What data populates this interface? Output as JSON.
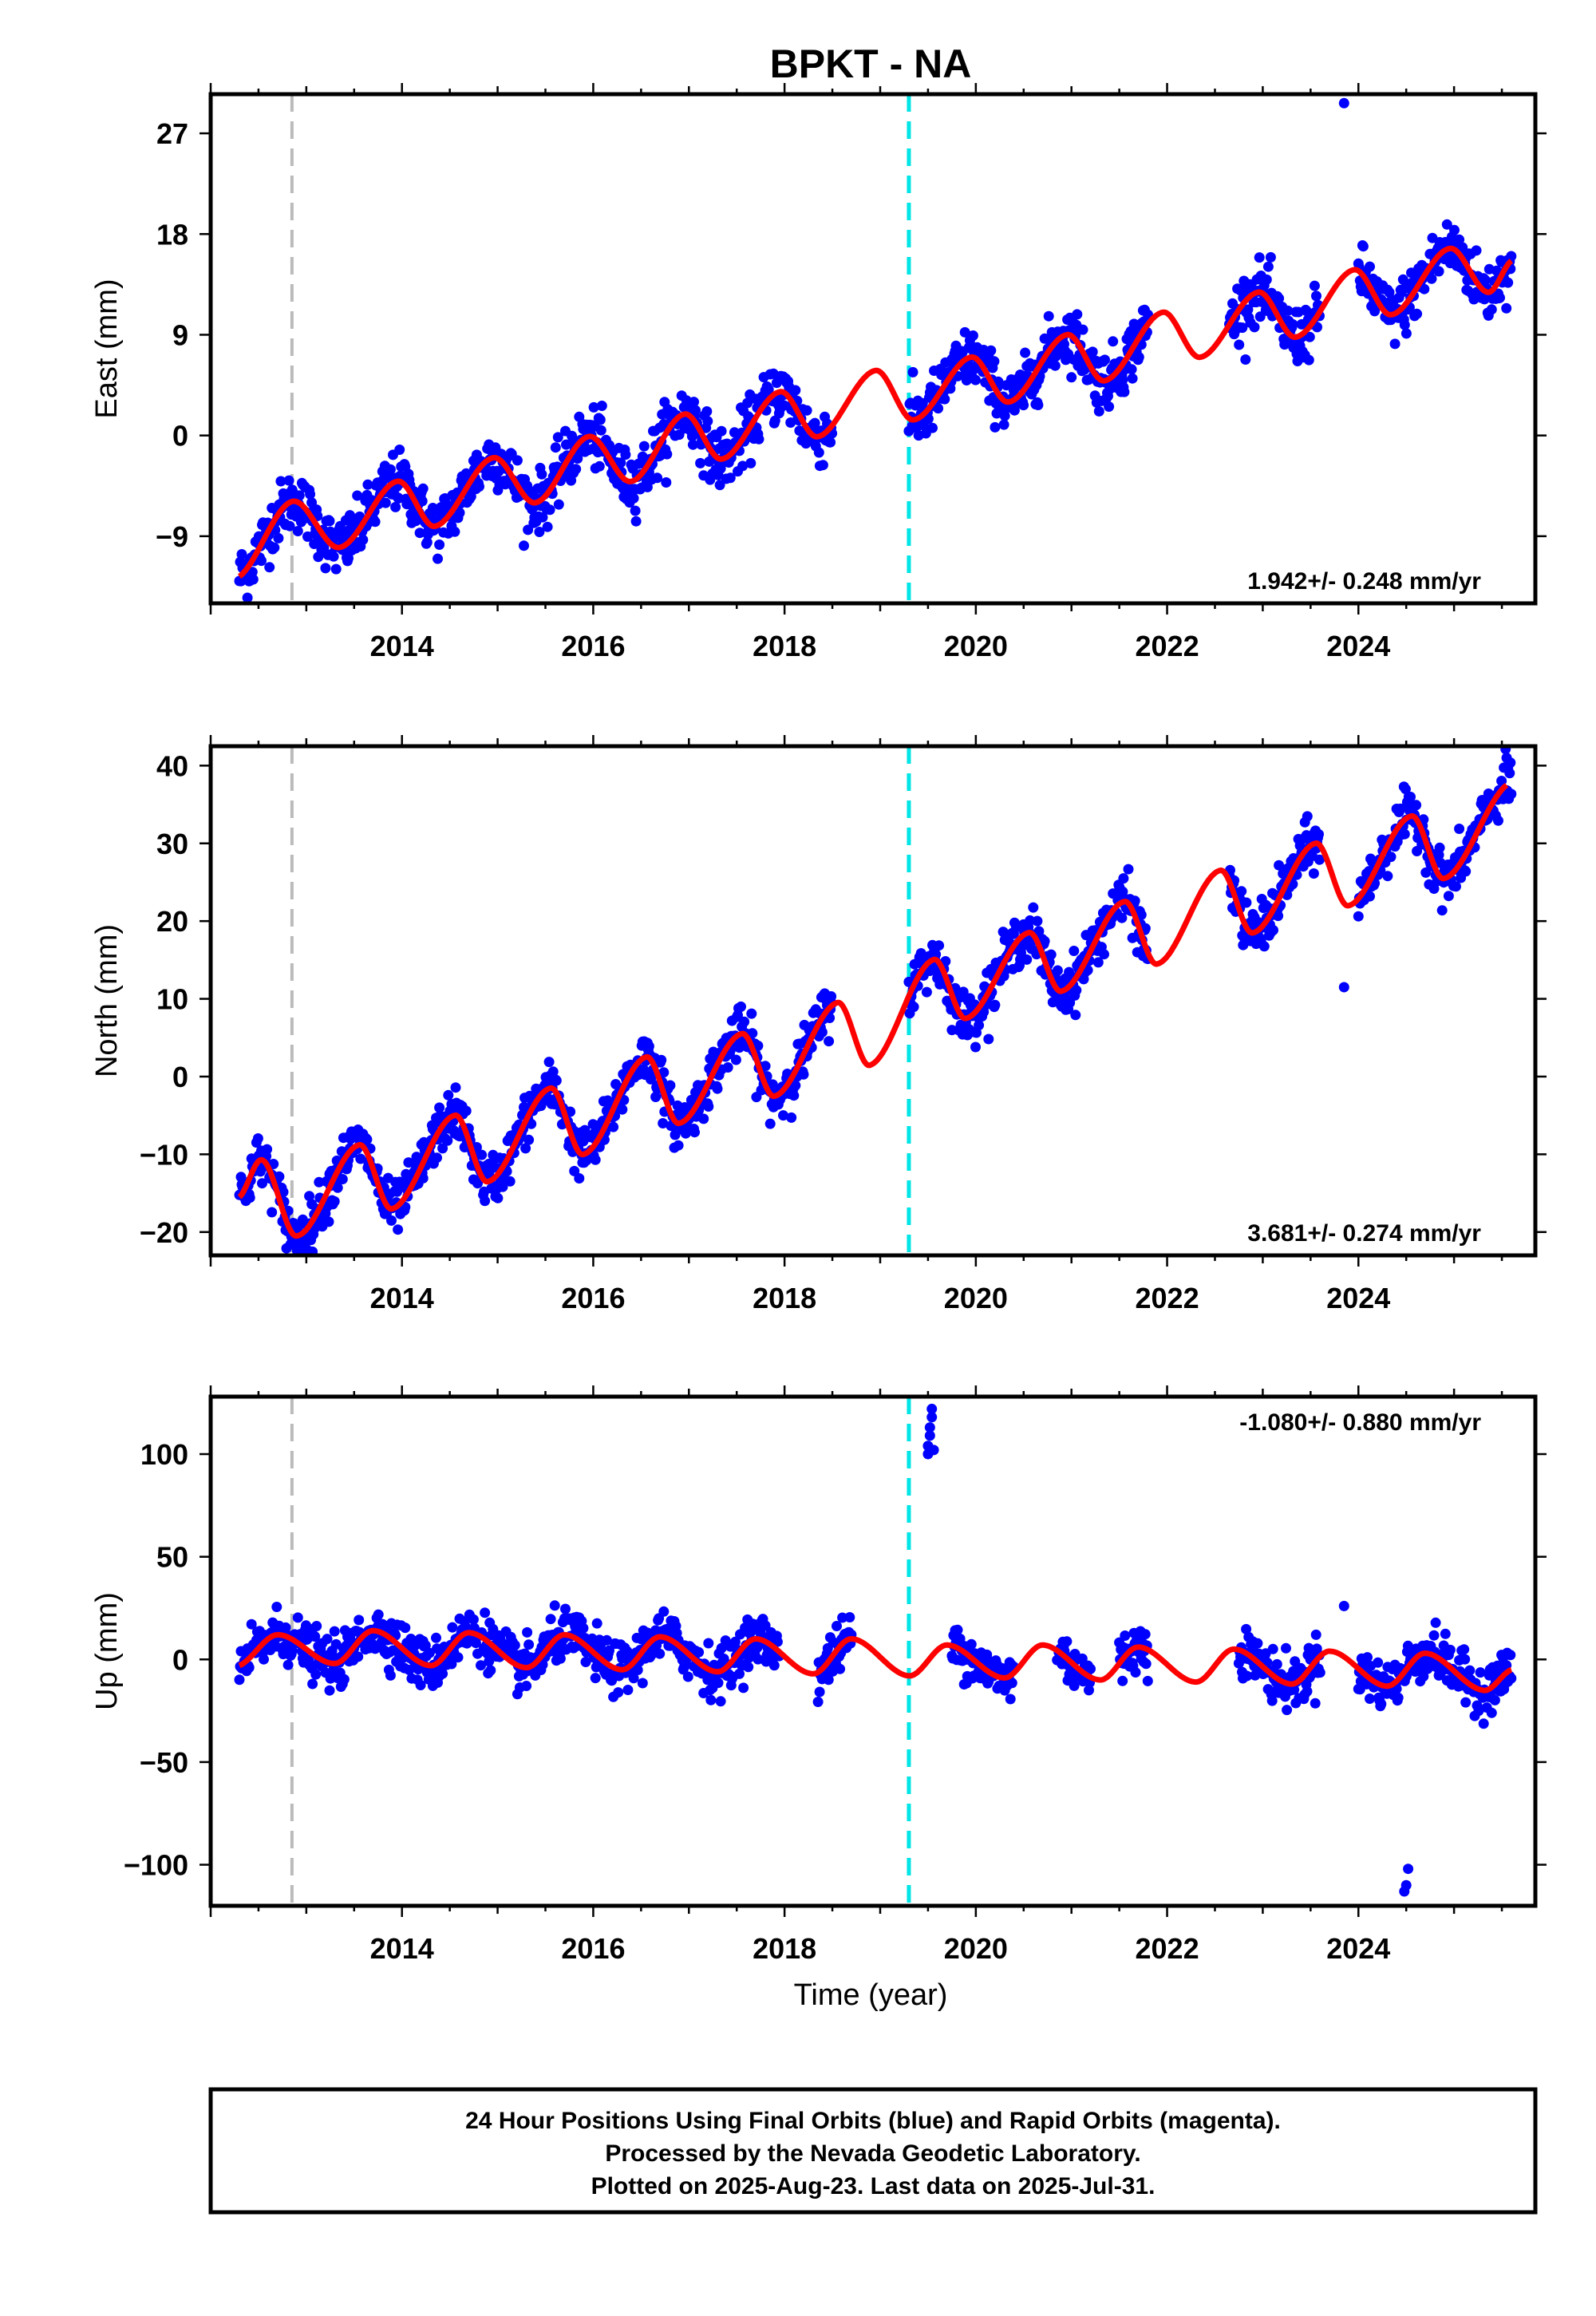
{
  "title": "BPKT - NA",
  "footer_note": {
    "lines": [
      "24 Hour Positions Using Final Orbits (blue) and Rapid Orbits (magenta).",
      "Processed by the Nevada Geodetic Laboratory.",
      "Plotted on 2025-Aug-23. Last data on 2025-Jul-31."
    ]
  },
  "xlabel": "Time (year)",
  "colors": {
    "data_points": "#0000ff",
    "model_curve": "#ff0000",
    "event_gray": "#bbbbbb",
    "event_cyan": "#00e5e5",
    "frame": "#000000"
  },
  "chart_data": [
    {
      "type": "scatter",
      "component": "east",
      "ylabel": "East (mm)",
      "rate_label": "1.942+/- 0.248 mm/yr",
      "xlim": [
        2012.0,
        2025.85
      ],
      "ylim": [
        -15.0,
        30.5
      ],
      "xticks": [
        2014,
        2016,
        2018,
        2020,
        2022,
        2024
      ],
      "xtick_labels": [
        "2014",
        "2016",
        "2018",
        "2020",
        "2022",
        "2024"
      ],
      "yticks": [
        -9,
        0,
        9,
        18,
        27
      ],
      "ytick_labels": [
        "−9",
        "0",
        "9",
        "18",
        "27"
      ],
      "event_lines": [
        {
          "x": 2012.85,
          "color": "gray"
        },
        {
          "x": 2019.3,
          "color": "cyan"
        }
      ],
      "model": {
        "rate_mm_per_yr": 1.942,
        "ref_year": 2019.0,
        "intercept": 2.0,
        "annual_amplitude": 2.6,
        "annual_peak_year_fraction": 0.95,
        "anchor_points": [
          {
            "x": 2012.3,
            "y": -12.6
          },
          {
            "x": 2012.85,
            "y": -5.9
          },
          {
            "x": 2013.35,
            "y": -10.0
          },
          {
            "x": 2013.95,
            "y": -4.1
          },
          {
            "x": 2014.35,
            "y": -8.1
          },
          {
            "x": 2014.95,
            "y": -2.0
          },
          {
            "x": 2015.4,
            "y": -6.0
          },
          {
            "x": 2015.95,
            "y": -0.1
          },
          {
            "x": 2016.4,
            "y": -4.1
          },
          {
            "x": 2016.95,
            "y": 1.9
          },
          {
            "x": 2017.35,
            "y": -2.1
          },
          {
            "x": 2017.95,
            "y": 3.9
          },
          {
            "x": 2018.35,
            "y": -0.1
          },
          {
            "x": 2018.95,
            "y": 5.8
          },
          {
            "x": 2019.35,
            "y": 1.4
          },
          {
            "x": 2019.95,
            "y": 7.0
          },
          {
            "x": 2020.35,
            "y": 3.0
          },
          {
            "x": 2020.95,
            "y": 9.0
          },
          {
            "x": 2021.35,
            "y": 4.9
          },
          {
            "x": 2021.95,
            "y": 11.0
          },
          {
            "x": 2022.35,
            "y": 7.0
          },
          {
            "x": 2022.95,
            "y": 12.8
          },
          {
            "x": 2023.35,
            "y": 8.8
          },
          {
            "x": 2023.95,
            "y": 14.8
          },
          {
            "x": 2024.35,
            "y": 10.8
          },
          {
            "x": 2024.95,
            "y": 16.7
          },
          {
            "x": 2025.35,
            "y": 12.8
          },
          {
            "x": 2025.6,
            "y": 15.6
          }
        ]
      },
      "data_coverage": [
        [
          2012.3,
          2018.5
        ],
        [
          2019.3,
          2021.8
        ],
        [
          2022.65,
          2023.6
        ],
        [
          2024.0,
          2025.6
        ]
      ],
      "scatter_sigma_mm": 1.3,
      "outliers": [
        {
          "x": 2023.85,
          "y": 29.7
        }
      ]
    },
    {
      "type": "scatter",
      "component": "north",
      "ylabel": "North (mm)",
      "rate_label": "3.681+/- 0.274 mm/yr",
      "xlim": [
        2012.0,
        2025.85
      ],
      "ylim": [
        -23.0,
        42.5
      ],
      "xticks": [
        2014,
        2016,
        2018,
        2020,
        2022,
        2024
      ],
      "xtick_labels": [
        "2014",
        "2016",
        "2018",
        "2020",
        "2022",
        "2024"
      ],
      "yticks": [
        -20,
        -10,
        0,
        10,
        20,
        30,
        40
      ],
      "ytick_labels": [
        "−20",
        "−10",
        "0",
        "10",
        "20",
        "30",
        "40"
      ],
      "event_lines": [
        {
          "x": 2012.85,
          "color": "gray"
        },
        {
          "x": 2019.3,
          "color": "cyan"
        }
      ],
      "model": {
        "anchor_points": [
          {
            "x": 2012.3,
            "y": -15.5
          },
          {
            "x": 2012.55,
            "y": -10.8
          },
          {
            "x": 2012.9,
            "y": -20.5
          },
          {
            "x": 2013.55,
            "y": -8.8
          },
          {
            "x": 2013.9,
            "y": -17.0
          },
          {
            "x": 2014.55,
            "y": -5.0
          },
          {
            "x": 2014.9,
            "y": -13.5
          },
          {
            "x": 2015.55,
            "y": -1.5
          },
          {
            "x": 2015.9,
            "y": -10.0
          },
          {
            "x": 2016.55,
            "y": 2.5
          },
          {
            "x": 2016.9,
            "y": -6.0
          },
          {
            "x": 2017.55,
            "y": 5.5
          },
          {
            "x": 2017.9,
            "y": -2.5
          },
          {
            "x": 2018.55,
            "y": 9.5
          },
          {
            "x": 2018.9,
            "y": 1.5
          },
          {
            "x": 2019.55,
            "y": 15.0
          },
          {
            "x": 2019.9,
            "y": 7.5
          },
          {
            "x": 2020.55,
            "y": 18.5
          },
          {
            "x": 2020.9,
            "y": 11.0
          },
          {
            "x": 2021.55,
            "y": 22.5
          },
          {
            "x": 2021.9,
            "y": 14.5
          },
          {
            "x": 2022.55,
            "y": 26.5
          },
          {
            "x": 2022.9,
            "y": 18.5
          },
          {
            "x": 2023.55,
            "y": 30.0
          },
          {
            "x": 2023.9,
            "y": 22.0
          },
          {
            "x": 2024.55,
            "y": 33.5
          },
          {
            "x": 2024.9,
            "y": 25.5
          },
          {
            "x": 2025.55,
            "y": 37.5
          }
        ]
      },
      "data_coverage": [
        [
          2012.3,
          2018.5
        ],
        [
          2019.3,
          2021.8
        ],
        [
          2022.65,
          2023.6
        ],
        [
          2024.0,
          2025.6
        ]
      ],
      "scatter_sigma_mm": 1.6,
      "outliers": [
        {
          "x": 2023.85,
          "y": 11.5
        },
        {
          "x": 2025.55,
          "y": 41.0
        }
      ]
    },
    {
      "type": "scatter",
      "component": "up",
      "ylabel": "Up (mm)",
      "rate_label": "-1.080+/- 0.880 mm/yr",
      "xlim": [
        2012.0,
        2025.85
      ],
      "ylim": [
        -120.0,
        128.0
      ],
      "xticks": [
        2014,
        2016,
        2018,
        2020,
        2022,
        2024
      ],
      "xtick_labels": [
        "2014",
        "2016",
        "2018",
        "2020",
        "2022",
        "2024"
      ],
      "yticks": [
        -100,
        -50,
        0,
        50,
        100
      ],
      "ytick_labels": [
        "−100",
        "−50",
        "0",
        "50",
        "100"
      ],
      "event_lines": [
        {
          "x": 2012.85,
          "color": "gray"
        },
        {
          "x": 2019.3,
          "color": "cyan"
        }
      ],
      "model": {
        "anchor_points": [
          {
            "x": 2012.3,
            "y": -3.0
          },
          {
            "x": 2012.7,
            "y": 12.0
          },
          {
            "x": 2013.3,
            "y": -2.0
          },
          {
            "x": 2013.7,
            "y": 14.0
          },
          {
            "x": 2014.3,
            "y": -3.0
          },
          {
            "x": 2014.7,
            "y": 13.0
          },
          {
            "x": 2015.3,
            "y": -4.0
          },
          {
            "x": 2015.7,
            "y": 12.0
          },
          {
            "x": 2016.3,
            "y": -5.0
          },
          {
            "x": 2016.7,
            "y": 11.0
          },
          {
            "x": 2017.3,
            "y": -6.0
          },
          {
            "x": 2017.7,
            "y": 10.0
          },
          {
            "x": 2018.3,
            "y": -7.0
          },
          {
            "x": 2018.7,
            "y": 10.0
          },
          {
            "x": 2019.3,
            "y": -8.0
          },
          {
            "x": 2019.7,
            "y": 7.0
          },
          {
            "x": 2020.3,
            "y": -9.0
          },
          {
            "x": 2020.7,
            "y": 7.0
          },
          {
            "x": 2021.3,
            "y": -10.0
          },
          {
            "x": 2021.7,
            "y": 6.0
          },
          {
            "x": 2022.3,
            "y": -11.0
          },
          {
            "x": 2022.7,
            "y": 5.0
          },
          {
            "x": 2023.3,
            "y": -12.0
          },
          {
            "x": 2023.7,
            "y": 4.0
          },
          {
            "x": 2024.3,
            "y": -13.0
          },
          {
            "x": 2024.7,
            "y": 3.0
          },
          {
            "x": 2025.3,
            "y": -15.0
          },
          {
            "x": 2025.6,
            "y": -5.0
          }
        ]
      },
      "data_coverage": [
        [
          2012.3,
          2017.95
        ],
        [
          2018.35,
          2018.7
        ],
        [
          2019.75,
          2020.4
        ],
        [
          2020.85,
          2021.2
        ],
        [
          2021.5,
          2021.8
        ],
        [
          2022.75,
          2023.6
        ],
        [
          2024.0,
          2025.6
        ]
      ],
      "scatter_sigma_mm": 6.0,
      "outliers": [
        {
          "x": 2019.5,
          "y": 100.0
        },
        {
          "x": 2019.5,
          "y": 104.0
        },
        {
          "x": 2019.52,
          "y": 109.0
        },
        {
          "x": 2019.52,
          "y": 113.0
        },
        {
          "x": 2019.54,
          "y": 118.0
        },
        {
          "x": 2019.54,
          "y": 122.0
        },
        {
          "x": 2019.56,
          "y": 102.0
        },
        {
          "x": 2023.85,
          "y": 26.0
        },
        {
          "x": 2024.52,
          "y": -102.0
        },
        {
          "x": 2024.5,
          "y": -110.0
        },
        {
          "x": 2024.48,
          "y": -113.0
        }
      ]
    }
  ]
}
